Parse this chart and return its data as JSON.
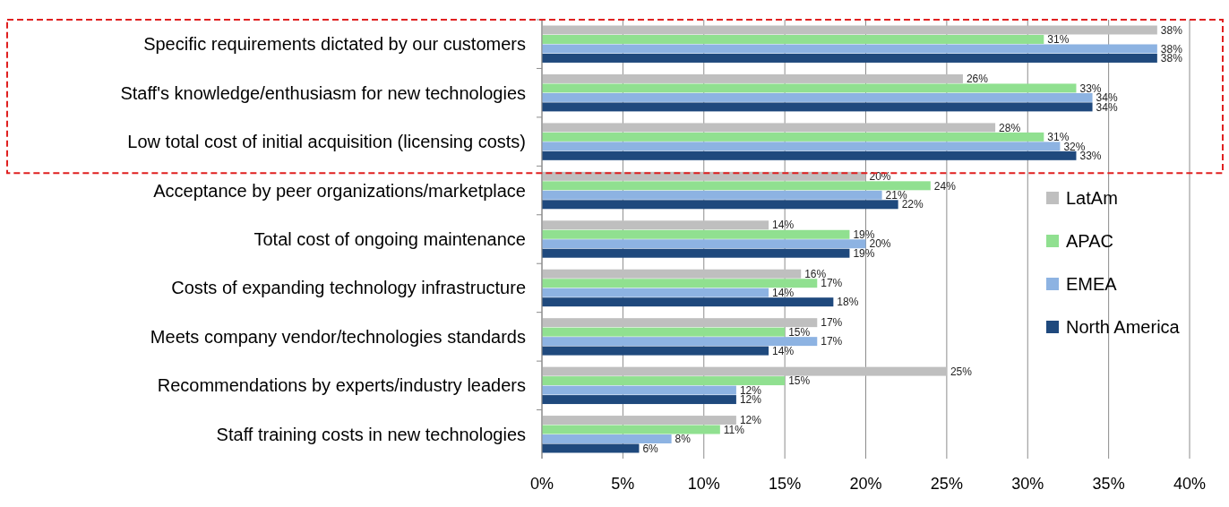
{
  "chart_data": {
    "type": "bar",
    "orientation": "horizontal",
    "categories": [
      "Specific requirements dictated by our customers",
      "Staff's knowledge/enthusiasm for new technologies",
      "Low total cost of initial acquisition (licensing costs)",
      "Acceptance by peer organizations/marketplace",
      "Total cost of ongoing maintenance",
      "Costs of expanding technology infrastructure",
      "Meets company vendor/technologies standards",
      "Recommendations by experts/industry leaders",
      "Staff training costs in new technologies"
    ],
    "series": [
      {
        "name": "LatAm",
        "color": "#bfbfbf",
        "values": [
          38,
          26,
          28,
          20,
          14,
          16,
          17,
          25,
          12
        ],
        "value_labels": [
          "38%",
          "26%",
          "28%",
          "20%",
          "14%",
          "16%",
          "17%",
          "25%",
          "12%"
        ]
      },
      {
        "name": "APAC",
        "color": "#90e090",
        "values": [
          31,
          33,
          31,
          24,
          19,
          17,
          15,
          15,
          11
        ],
        "value_labels": [
          "31%",
          "33%",
          "31%",
          "24%",
          "19%",
          "17%",
          "15%",
          "15%",
          "11%"
        ]
      },
      {
        "name": "EMEA",
        "color": "#8db3e2",
        "values": [
          38,
          34,
          32,
          21,
          20,
          14,
          17,
          12,
          8
        ],
        "value_labels": [
          "38%",
          "34%",
          "32%",
          "21%",
          "20%",
          "14%",
          "17%",
          "12%",
          "8%"
        ]
      },
      {
        "name": "North America",
        "color": "#1f497d",
        "values": [
          38,
          34,
          33,
          22,
          19,
          18,
          14,
          12,
          6
        ],
        "value_labels": [
          "38%",
          "34%",
          "33%",
          "22%",
          "19%",
          "18%",
          "14%",
          "12%",
          "6%"
        ]
      }
    ],
    "xlim": [
      0,
      40
    ],
    "xticks": [
      {
        "value": 0,
        "label": "0%"
      },
      {
        "value": 5,
        "label": "5%"
      },
      {
        "value": 10,
        "label": "10%"
      },
      {
        "value": 15,
        "label": "15%"
      },
      {
        "value": 20,
        "label": "20%"
      },
      {
        "value": 25,
        "label": "25%"
      },
      {
        "value": 30,
        "label": "30%"
      },
      {
        "value": 35,
        "label": "35%"
      },
      {
        "value": 40,
        "label": "40%"
      }
    ],
    "grid": "x",
    "legend": "right"
  }
}
